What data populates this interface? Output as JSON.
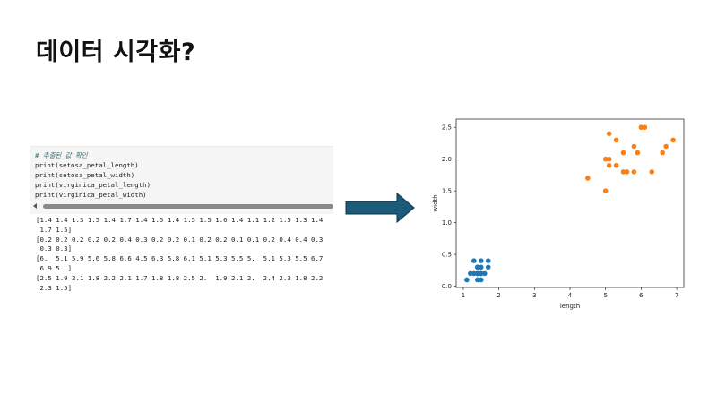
{
  "slide": {
    "title": "데이터 시각화?"
  },
  "code_cell": {
    "comment": "# 추출된 값 확인",
    "lines": [
      "print(setosa_petal_length)",
      "print(setosa_petal_width)",
      "print(virginica_petal_length)",
      "print(virginica_petal_width)"
    ]
  },
  "output_lines": [
    "[1.4 1.4 1.3 1.5 1.4 1.7 1.4 1.5 1.4 1.5 1.5 1.6 1.4 1.1 1.2 1.5 1.3 1.4",
    " 1.7 1.5]",
    "[0.2 0.2 0.2 0.2 0.2 0.4 0.3 0.2 0.2 0.1 0.2 0.2 0.1 0.1 0.2 0.4 0.4 0.3",
    " 0.3 0.3]",
    "[6.  5.1 5.9 5.6 5.8 6.6 4.5 6.3 5.8 6.1 5.1 5.3 5.5 5.  5.1 5.3 5.5 6.7",
    " 6.9 5. ]",
    "[2.5 1.9 2.1 1.8 2.2 2.1 1.7 1.8 1.8 2.5 2.  1.9 2.1 2.  2.4 2.3 1.8 2.2",
    " 2.3 1.5]"
  ],
  "arrow": {
    "color": "#1c5a7a"
  },
  "chart_data": {
    "type": "scatter",
    "xlabel": "length",
    "ylabel": "width",
    "xlim": [
      0.8,
      7.2
    ],
    "ylim": [
      -0.02,
      2.63
    ],
    "xticks": [
      1,
      2,
      3,
      4,
      5,
      6,
      7
    ],
    "yticks": [
      0.0,
      0.5,
      1.0,
      1.5,
      2.0,
      2.5
    ],
    "xtick_labels": [
      "1",
      "2",
      "3",
      "4",
      "5",
      "6",
      "7"
    ],
    "ytick_labels": [
      "0.0",
      "0.5",
      "1.0",
      "1.5",
      "2.0",
      "2.5"
    ],
    "grid": false,
    "series": [
      {
        "color": "#1f77b4",
        "x": [
          1.4,
          1.4,
          1.3,
          1.5,
          1.4,
          1.7,
          1.4,
          1.5,
          1.4,
          1.5,
          1.5,
          1.6,
          1.4,
          1.1,
          1.2,
          1.5,
          1.3,
          1.4,
          1.7,
          1.5
        ],
        "y": [
          0.2,
          0.2,
          0.2,
          0.2,
          0.2,
          0.4,
          0.3,
          0.2,
          0.2,
          0.1,
          0.2,
          0.2,
          0.1,
          0.1,
          0.2,
          0.4,
          0.4,
          0.3,
          0.3,
          0.3
        ]
      },
      {
        "color": "#ff7f0e",
        "x": [
          6.0,
          5.1,
          5.9,
          5.6,
          5.8,
          6.6,
          4.5,
          6.3,
          5.8,
          6.1,
          5.1,
          5.3,
          5.5,
          5.0,
          5.1,
          5.3,
          5.5,
          6.7,
          6.9,
          5.0
        ],
        "y": [
          2.5,
          1.9,
          2.1,
          1.8,
          2.2,
          2.1,
          1.7,
          1.8,
          1.8,
          2.5,
          2.0,
          1.9,
          2.1,
          2.0,
          2.4,
          2.3,
          1.8,
          2.2,
          2.3,
          1.5
        ]
      }
    ]
  }
}
